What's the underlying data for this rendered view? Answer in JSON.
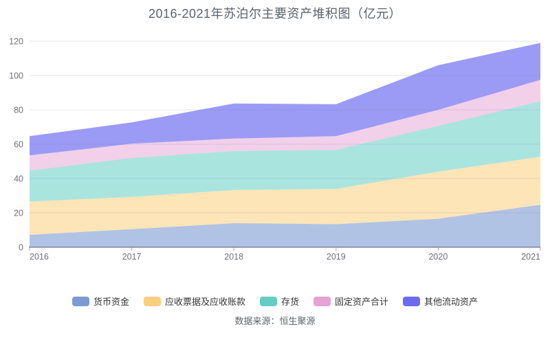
{
  "page": {
    "title": "2016-2021年苏泊尔主要资产堆积图（亿元）",
    "source": "数据来源：恒生聚源"
  },
  "axis": {
    "y_tick_color": "#6e7079",
    "x_tick_color": "#6e7079",
    "grid_color": "rgba(110,110,150,0.18)",
    "axis_line_color": "#7d8492",
    "tick_mark_color": "#9aa0ab"
  },
  "chart_data": {
    "type": "area",
    "stacked": true,
    "title": "2016-2021年苏泊尔主要资产堆积图（亿元）",
    "x": [
      "2016",
      "2017",
      "2018",
      "2019",
      "2020",
      "2021"
    ],
    "xlabel": "",
    "ylabel": "亿元",
    "ylim": [
      0,
      120
    ],
    "yticks": [
      0,
      20,
      40,
      60,
      80,
      100,
      120
    ],
    "grid": true,
    "legend_position": "bottom",
    "series": [
      {
        "name": "货币资金",
        "legend_color": "#7b9bd2",
        "fill_color": "#7b9bd2",
        "fill_opacity": 0.6,
        "values": [
          7.2,
          10.5,
          14.0,
          13.4,
          16.6,
          24.7
        ]
      },
      {
        "name": "应收票据及应收账款",
        "legend_color": "#fbcf7e",
        "fill_color": "#fbcf7e",
        "fill_opacity": 0.55,
        "values": [
          19.4,
          18.8,
          19.3,
          20.6,
          27.4,
          28.0
        ]
      },
      {
        "name": "存货",
        "legend_color": "#65cdc3",
        "fill_color": "#65cdc3",
        "fill_opacity": 0.55,
        "values": [
          18.0,
          22.7,
          22.7,
          22.7,
          26.7,
          32.3
        ]
      },
      {
        "name": "固定资产合计",
        "legend_color": "#e5a2d5",
        "fill_color": "#e5a2d5",
        "fill_opacity": 0.5,
        "values": [
          8.9,
          8.3,
          7.3,
          8.0,
          9.3,
          12.5
        ]
      },
      {
        "name": "其他流动资产",
        "legend_color": "#6c6cf0",
        "fill_color": "#6c6cf0",
        "fill_opacity": 0.68,
        "values": [
          11.2,
          12.4,
          20.4,
          18.6,
          26.0,
          21.5
        ]
      }
    ],
    "stack_totals": [
      64.7,
      72.7,
      83.7,
      83.3,
      106.0,
      119.0
    ]
  }
}
